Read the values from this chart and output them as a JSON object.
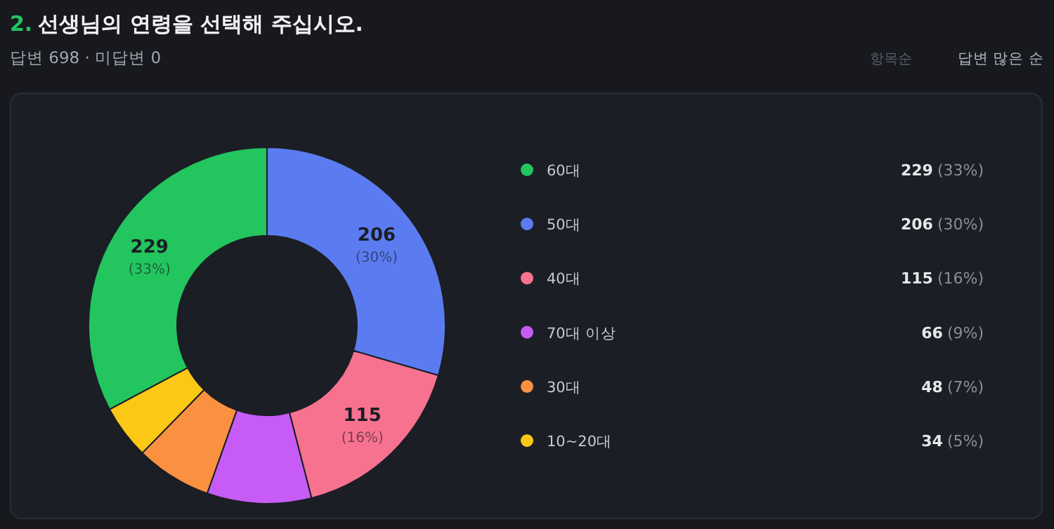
{
  "chart_data": {
    "type": "donut",
    "title": "2. 선생님의 연령을 선택해 주십시오.",
    "subtitle": "답변 698 · 미답변 0",
    "annotations": [
      "항목순",
      "답변 많은 순"
    ],
    "categories": [
      "60대",
      "50대",
      "40대",
      "70대 이상",
      "30대",
      "10~20대"
    ],
    "values": [
      229,
      206,
      115,
      66,
      48,
      34
    ],
    "colors": [
      "#22c55e",
      "#5b7cf0",
      "#f7728f",
      "#c65cf5",
      "#f99140",
      "#fac815"
    ],
    "value_labels": [
      "229 (33%)",
      "206 (30%)",
      "115 (16%)",
      "66 (9%)",
      "48 (7%)",
      "34 (5%)"
    ],
    "legend": "right"
  }
}
